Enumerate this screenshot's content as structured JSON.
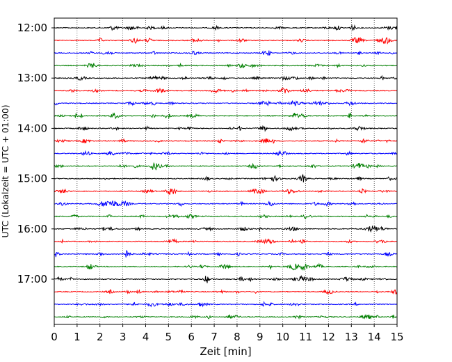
{
  "chart_data": {
    "type": "line",
    "title": "",
    "xlabel": "Zeit  [min]",
    "ylabel": "UTC (Lokalzeit = UTC + 01:00)",
    "xlim": [
      0,
      15
    ],
    "x_ticks": [
      "0",
      "1",
      "2",
      "3",
      "4",
      "5",
      "6",
      "7",
      "8",
      "9",
      "10",
      "11",
      "12",
      "13",
      "14",
      "15"
    ],
    "y_ticks": [
      "12:00",
      "13:00",
      "14:00",
      "15:00",
      "16:00",
      "17:00"
    ],
    "traces_start": "12:00",
    "traces_end": "17:45",
    "trace_interval_minutes": 15,
    "trace_count": 24,
    "colors": [
      "#000000",
      "#ff0000",
      "#0000ff",
      "#007f00"
    ],
    "grid": "vertical-dotted",
    "legend": "none"
  }
}
